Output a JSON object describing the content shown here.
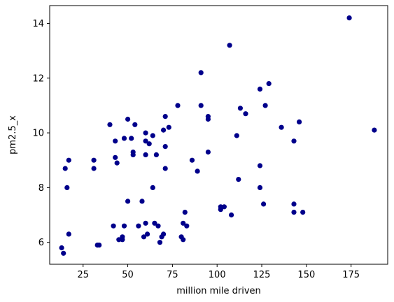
{
  "chart_data": {
    "type": "scatter",
    "xlabel": "million mile driven",
    "ylabel": "pm2.5_x",
    "xlim": [
      6.3,
      195.5
    ],
    "ylim": [
      5.2,
      14.65
    ],
    "xticks": [
      25,
      50,
      75,
      100,
      125,
      150,
      175
    ],
    "yticks": [
      6,
      8,
      10,
      12,
      14
    ],
    "grid": false,
    "marker_color": "#00008b",
    "series": [
      {
        "points": [
          [
            13,
            5.8
          ],
          [
            14,
            5.6
          ],
          [
            15,
            8.7
          ],
          [
            16,
            8.0
          ],
          [
            17,
            9.0
          ],
          [
            17,
            6.3
          ],
          [
            31,
            9.0
          ],
          [
            31,
            8.7
          ],
          [
            33,
            5.9
          ],
          [
            34,
            5.9
          ],
          [
            40,
            10.3
          ],
          [
            42,
            6.6
          ],
          [
            43,
            9.7
          ],
          [
            43,
            9.1
          ],
          [
            44,
            8.9
          ],
          [
            45,
            6.1
          ],
          [
            47,
            6.2
          ],
          [
            47,
            6.1
          ],
          [
            48,
            9.8
          ],
          [
            48,
            6.6
          ],
          [
            50,
            10.5
          ],
          [
            50,
            7.5
          ],
          [
            52,
            9.8
          ],
          [
            53,
            9.3
          ],
          [
            53,
            9.2
          ],
          [
            54,
            10.3
          ],
          [
            56,
            6.6
          ],
          [
            58,
            7.5
          ],
          [
            59,
            6.2
          ],
          [
            60,
            10.0
          ],
          [
            60,
            9.7
          ],
          [
            60,
            9.2
          ],
          [
            60,
            6.7
          ],
          [
            61,
            6.3
          ],
          [
            62,
            9.6
          ],
          [
            64,
            8.0
          ],
          [
            64,
            9.9
          ],
          [
            65,
            6.7
          ],
          [
            66,
            9.2
          ],
          [
            67,
            6.6
          ],
          [
            68,
            6.0
          ],
          [
            69,
            6.2
          ],
          [
            70,
            10.1
          ],
          [
            70,
            6.3
          ],
          [
            71,
            10.6
          ],
          [
            71,
            9.5
          ],
          [
            71,
            8.7
          ],
          [
            73,
            10.2
          ],
          [
            78,
            11.0
          ],
          [
            80,
            6.2
          ],
          [
            81,
            6.1
          ],
          [
            81,
            6.7
          ],
          [
            82,
            7.1
          ],
          [
            83,
            6.6
          ],
          [
            86,
            9.0
          ],
          [
            89,
            8.6
          ],
          [
            91,
            12.2
          ],
          [
            91,
            11.0
          ],
          [
            95,
            10.6
          ],
          [
            95,
            10.5
          ],
          [
            95,
            9.3
          ],
          [
            102,
            7.3
          ],
          [
            102,
            7.2
          ],
          [
            104,
            7.3
          ],
          [
            107,
            13.2
          ],
          [
            108,
            7.0
          ],
          [
            111,
            9.9
          ],
          [
            112,
            8.3
          ],
          [
            113,
            10.9
          ],
          [
            116,
            10.7
          ],
          [
            124,
            11.6
          ],
          [
            124,
            8.8
          ],
          [
            124,
            8.0
          ],
          [
            126,
            7.4
          ],
          [
            127,
            11.0
          ],
          [
            129,
            11.8
          ],
          [
            136,
            10.2
          ],
          [
            143,
            9.7
          ],
          [
            143,
            7.4
          ],
          [
            143,
            7.1
          ],
          [
            146,
            10.4
          ],
          [
            148,
            7.1
          ],
          [
            174,
            14.2
          ],
          [
            188,
            10.1
          ]
        ]
      }
    ]
  }
}
